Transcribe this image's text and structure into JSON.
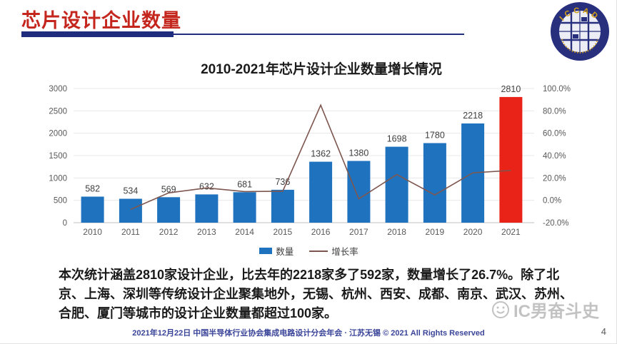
{
  "header": {
    "title": "芯片设计企业数量"
  },
  "logo": {
    "text": "ICCAD"
  },
  "chart_data": {
    "type": "bar+line combo",
    "title": "2010-2021年芯片设计企业数量增长情况",
    "categories": [
      "2010",
      "2011",
      "2012",
      "2013",
      "2014",
      "2015",
      "2016",
      "2017",
      "2018",
      "2019",
      "2020",
      "2021"
    ],
    "series": [
      {
        "name": "数量",
        "type": "bar",
        "axis": "left",
        "values": [
          582,
          534,
          569,
          632,
          681,
          736,
          1362,
          1380,
          1698,
          1780,
          2218,
          2810
        ]
      },
      {
        "name": "增长率",
        "type": "line",
        "axis": "right",
        "values": [
          null,
          -8.2,
          6.6,
          11.1,
          7.8,
          8.1,
          85.1,
          1.3,
          23.0,
          4.8,
          24.6,
          26.7
        ]
      }
    ],
    "highlight_index": 11,
    "left_axis": {
      "min": 0,
      "max": 3000,
      "step": 500,
      "tick_labels": [
        "3000",
        "2500",
        "2000",
        "1500",
        "1000",
        "500",
        "0"
      ]
    },
    "right_axis": {
      "min": -20,
      "max": 100,
      "step": 20,
      "tick_labels": [
        "100.0%",
        "80.0%",
        "60.0%",
        "40.0%",
        "20.0%",
        "0.0%",
        "-20.0%"
      ]
    },
    "legend": [
      "数量",
      "增长率"
    ],
    "legend_position": "bottom",
    "grid": true,
    "colors": {
      "bar": "#1F73BE",
      "bar_highlight": "#EA2318",
      "line": "#7D564F",
      "grid": "#E8E8E8",
      "axis": "#BFBFBF",
      "tick_text": "#595959",
      "value_text": "#404040"
    }
  },
  "body": {
    "lines": [
      "本次统计涵盖2810家设计企业，比去年的2218家多了592家，数量增长了26.7%。除了北",
      "京、上海、深圳等传统设计企业聚集地外，无锡、杭州、西安、成都、南京、武汉、苏州、",
      "合肥、厦门等城市的设计企业数量都超过100家。"
    ]
  },
  "watermark": {
    "text": "IC男奋斗史"
  },
  "footer": {
    "text": "2021年12月22日 中国半导体行业协会集成电路设计分会年会 · 江苏无锡 © 2021 All Rights Reserved",
    "page": "4"
  }
}
